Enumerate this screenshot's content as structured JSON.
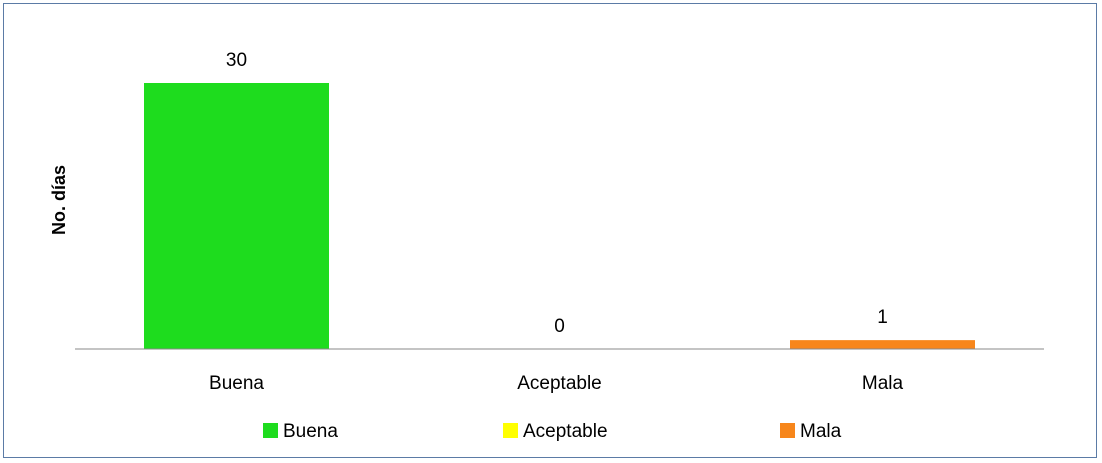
{
  "chart_data": {
    "type": "bar",
    "title": "",
    "xlabel": "",
    "ylabel": "No. días",
    "categories": [
      "Buena",
      "Aceptable",
      "Mala"
    ],
    "values": [
      30,
      0,
      1
    ],
    "data_labels": [
      "30",
      "0",
      "1"
    ],
    "colors": [
      "#1edc1e",
      "#ffff00",
      "#f7861b"
    ],
    "ylim": [
      0,
      30
    ],
    "grid": false,
    "legend": {
      "position": "bottom",
      "entries": [
        "Buena",
        "Aceptable",
        "Mala"
      ]
    }
  },
  "style": {
    "frame_border": "#5b7ba6",
    "axis_color": "#888888"
  }
}
